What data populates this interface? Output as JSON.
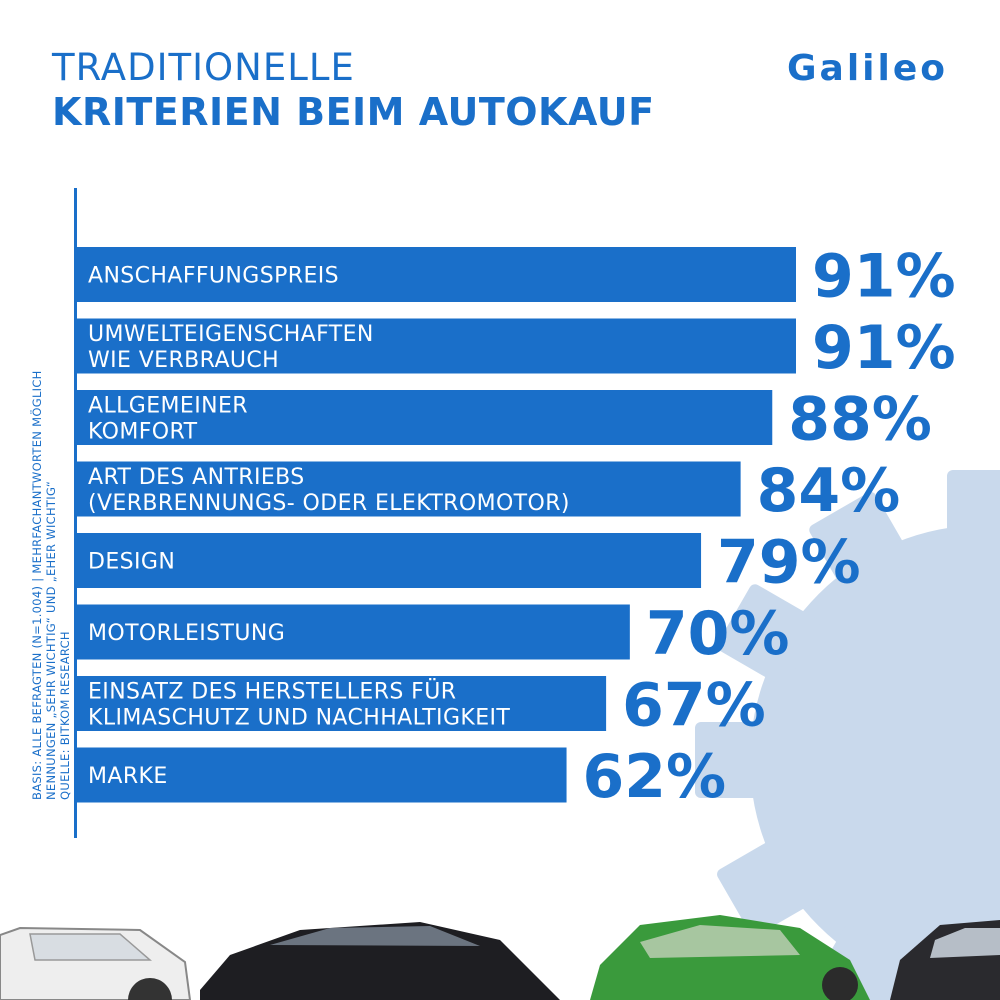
{
  "header": {
    "title_line1": "TRADITIONELLE",
    "title_line2": "KRITERIEN BEIM AUTOKAUF",
    "logo": "Galileo"
  },
  "source_note": [
    "BASIS: ALLE BEFRAGTEN (N=1.004) | MEHRFACHANTWORTEN MÖGLICH",
    "NENNUNGEN „SEHR WICHTIG“ UND „EHER WICHTIG“",
    "QUELLE: BITKOM RESEARCH"
  ],
  "colors": {
    "bar": "#1a6fc9",
    "value": "#1a6fc9",
    "gear": "#c9d9ec"
  },
  "chart_data": {
    "type": "bar",
    "orientation": "horizontal",
    "unit": "%",
    "categories": [
      [
        "ANSCHAFFUNGSPREIS"
      ],
      [
        "UMWELTEIGENSCHAFTEN",
        "WIE VERBRAUCH"
      ],
      [
        "ALLGEMEINER",
        "KOMFORT"
      ],
      [
        "ART DES ANTRIEBS",
        "(VERBRENNUNGS- ODER ELEKTROMOTOR)"
      ],
      [
        "DESIGN"
      ],
      [
        "MOTORLEISTUNG"
      ],
      [
        "EINSATZ DES HERSTELLERS FÜR",
        "KLIMASCHUTZ UND NACHHALTIGKEIT"
      ],
      [
        "MARKE"
      ]
    ],
    "values": [
      91,
      91,
      88,
      84,
      79,
      70,
      67,
      62
    ],
    "value_labels": [
      "91%",
      "91%",
      "88%",
      "84%",
      "79%",
      "70%",
      "67%",
      "62%"
    ]
  }
}
